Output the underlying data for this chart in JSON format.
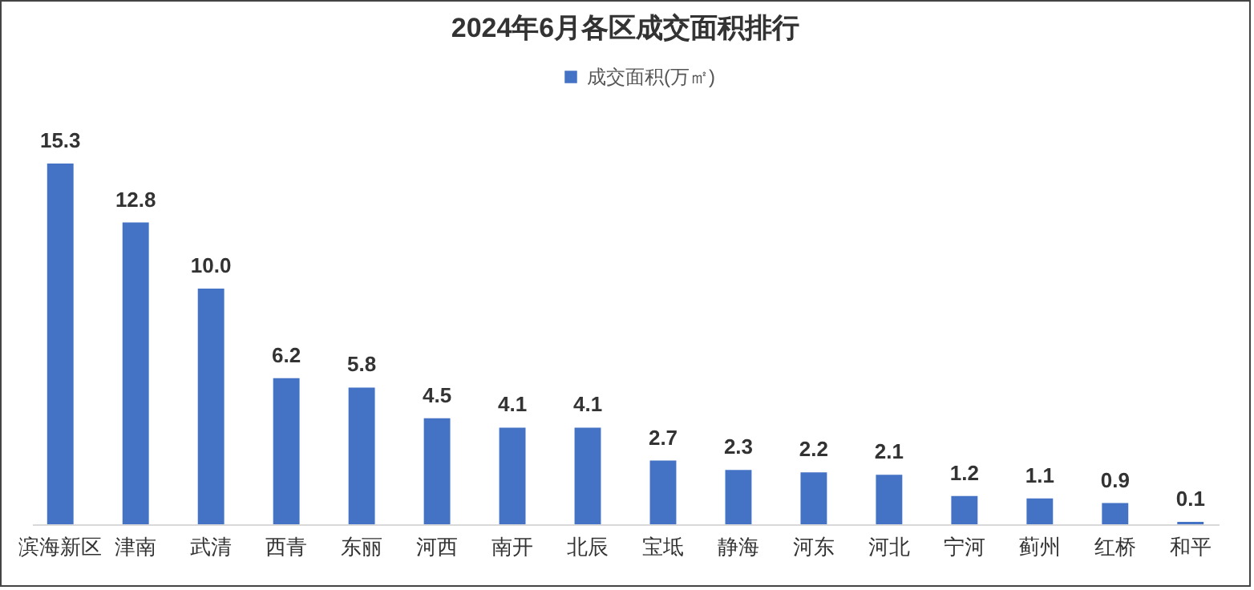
{
  "chart_data": {
    "type": "bar",
    "title": "2024年6月各区成交面积排行",
    "categories": [
      "滨海新区",
      "津南",
      "武清",
      "西青",
      "东丽",
      "河西",
      "南开",
      "北辰",
      "宝坻",
      "静海",
      "河东",
      "河北",
      "宁河",
      "蓟州",
      "红桥",
      "和平"
    ],
    "series": [
      {
        "name": "成交面积(万㎡)",
        "color": "#4472c4",
        "values": [
          15.3,
          12.8,
          10.0,
          6.2,
          5.8,
          4.5,
          4.1,
          4.1,
          2.7,
          2.3,
          2.2,
          2.1,
          1.2,
          1.1,
          0.9,
          0.1
        ],
        "value_labels": [
          "15.3",
          "12.8",
          "10.0",
          "6.2",
          "5.8",
          "4.5",
          "4.1",
          "4.1",
          "2.7",
          "2.3",
          "2.2",
          "2.1",
          "1.2",
          "1.1",
          "0.9",
          "0.1"
        ]
      }
    ],
    "legend": "top",
    "grid": false
  }
}
